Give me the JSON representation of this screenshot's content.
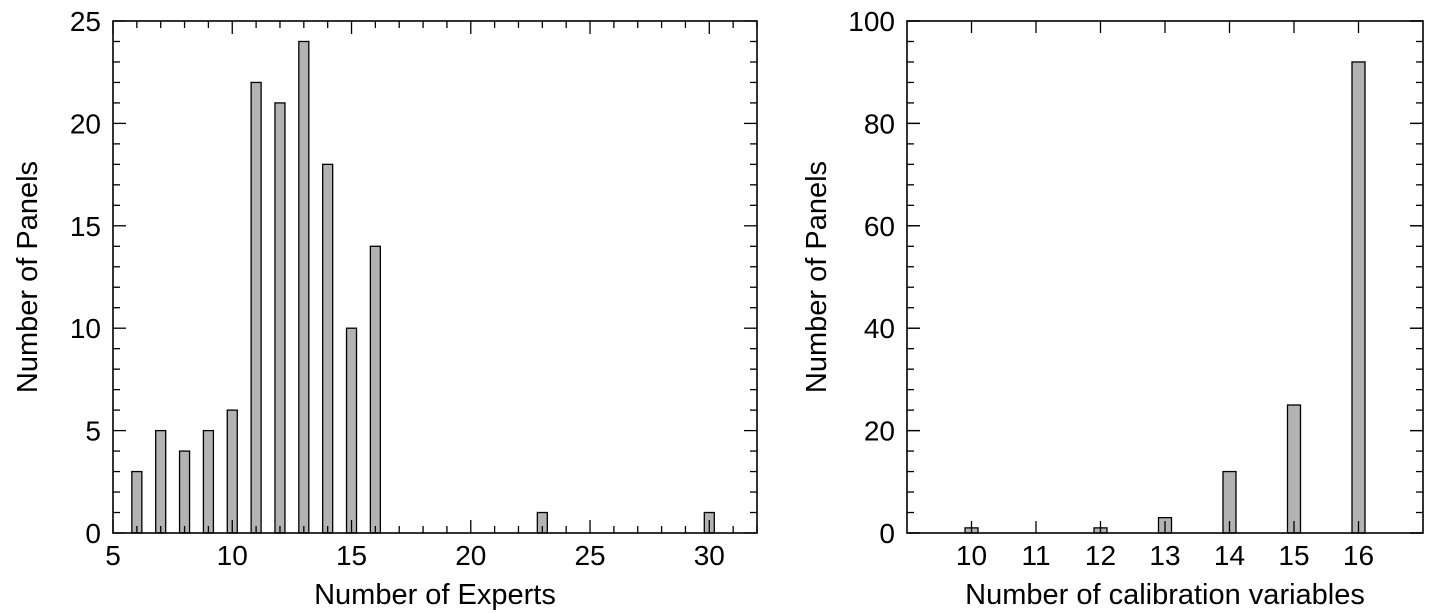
{
  "chart_data": [
    {
      "type": "bar",
      "title": "",
      "xlabel": "Number of Experts",
      "ylabel": "Number of Panels",
      "xlim": [
        5,
        32
      ],
      "ylim": [
        0,
        25
      ],
      "x_ticks": [
        5,
        10,
        15,
        20,
        25,
        30
      ],
      "y_ticks": [
        0,
        5,
        10,
        15,
        20,
        25
      ],
      "x": [
        6,
        7,
        8,
        9,
        10,
        11,
        12,
        13,
        14,
        15,
        16,
        23,
        30
      ],
      "values": [
        3,
        5,
        4,
        5,
        6,
        22,
        21,
        24,
        18,
        10,
        14,
        1,
        1
      ],
      "bar_color": "#b3b3b3"
    },
    {
      "type": "bar",
      "title": "",
      "xlabel": "Number of calibration variables",
      "ylabel": "Number of Panels",
      "ylim": [
        0,
        100
      ],
      "y_ticks": [
        0,
        20,
        40,
        60,
        80,
        100
      ],
      "categories": [
        "10",
        "11",
        "12",
        "13",
        "14",
        "15",
        "16"
      ],
      "values": [
        1,
        0,
        1,
        3,
        12,
        25,
        92
      ],
      "bar_color": "#b3b3b3"
    }
  ]
}
